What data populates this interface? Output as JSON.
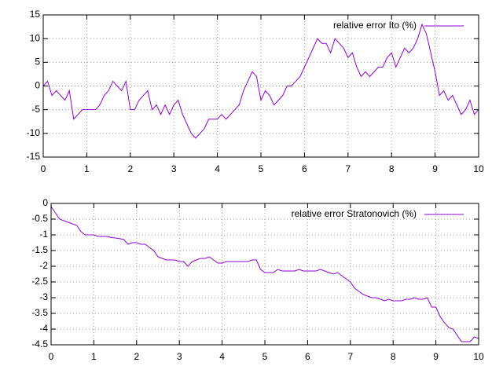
{
  "chart_data": [
    {
      "type": "line",
      "grid": true,
      "legend": "top right",
      "x": [
        0,
        0.1,
        0.2,
        0.3,
        0.4,
        0.5,
        0.6,
        0.7,
        0.8,
        0.9,
        1,
        1.1,
        1.2,
        1.3,
        1.4,
        1.5,
        1.6,
        1.7,
        1.8,
        1.9,
        2,
        2.1,
        2.2,
        2.3,
        2.4,
        2.5,
        2.6,
        2.7,
        2.8,
        2.9,
        3,
        3.1,
        3.2,
        3.3,
        3.4,
        3.5,
        3.6,
        3.7,
        3.8,
        3.9,
        4,
        4.1,
        4.2,
        4.3,
        4.4,
        4.5,
        4.6,
        4.7,
        4.8,
        4.9,
        5,
        5.1,
        5.2,
        5.3,
        5.4,
        5.5,
        5.6,
        5.7,
        5.8,
        5.9,
        6,
        6.1,
        6.2,
        6.3,
        6.4,
        6.5,
        6.6,
        6.7,
        6.8,
        6.9,
        7,
        7.1,
        7.2,
        7.3,
        7.4,
        7.5,
        7.6,
        7.7,
        7.8,
        7.9,
        8,
        8.1,
        8.2,
        8.3,
        8.4,
        8.5,
        8.6,
        8.7,
        8.8,
        8.9,
        9,
        9.1,
        9.2,
        9.3,
        9.4,
        9.5,
        9.6,
        9.7,
        9.8,
        9.9,
        10
      ],
      "series": [
        {
          "name": "relative error Ito (%)",
          "color": "#9400d3",
          "values": [
            0,
            1,
            -2,
            -1,
            -2,
            -3,
            -1,
            -7,
            -6,
            -5,
            -5,
            -5,
            -5,
            -4,
            -2,
            -1,
            1,
            0,
            -1,
            1,
            -5,
            -5,
            -3,
            -2,
            -1,
            -5,
            -4,
            -6,
            -4,
            -6,
            -4,
            -3,
            -6,
            -8,
            -10,
            -11,
            -10,
            -9,
            -7,
            -7,
            -7,
            -6,
            -7,
            -6,
            -5,
            -4,
            -1,
            1,
            3,
            2,
            -3,
            -1,
            -2,
            -4,
            -3,
            -2,
            0,
            0,
            1,
            2,
            4,
            6,
            8,
            10,
            9,
            9,
            7,
            10,
            9,
            8,
            6,
            7,
            4,
            2,
            3,
            2,
            3,
            4,
            4,
            6,
            7,
            4,
            6,
            8,
            7,
            8,
            10,
            13,
            11,
            7,
            3,
            -2,
            -1,
            -3,
            -2,
            -4,
            -6,
            -5,
            -3,
            -6,
            -5
          ]
        }
      ],
      "xlim": [
        0,
        10
      ],
      "xticks": [
        0,
        1,
        2,
        3,
        4,
        5,
        6,
        7,
        8,
        9,
        10
      ],
      "ylim": [
        -15,
        15
      ],
      "yticks": [
        -15,
        -10,
        -5,
        0,
        5,
        10,
        15
      ]
    },
    {
      "type": "line",
      "grid": true,
      "legend": "top right",
      "x": [
        0,
        0.1,
        0.2,
        0.3,
        0.4,
        0.5,
        0.6,
        0.7,
        0.8,
        0.9,
        1,
        1.1,
        1.2,
        1.3,
        1.4,
        1.5,
        1.6,
        1.7,
        1.8,
        1.9,
        2,
        2.1,
        2.2,
        2.3,
        2.4,
        2.5,
        2.6,
        2.7,
        2.8,
        2.9,
        3,
        3.1,
        3.2,
        3.3,
        3.4,
        3.5,
        3.6,
        3.7,
        3.8,
        3.9,
        4,
        4.1,
        4.2,
        4.3,
        4.4,
        4.5,
        4.6,
        4.7,
        4.8,
        4.9,
        5,
        5.1,
        5.2,
        5.3,
        5.4,
        5.5,
        5.6,
        5.7,
        5.8,
        5.9,
        6,
        6.1,
        6.2,
        6.3,
        6.4,
        6.5,
        6.6,
        6.7,
        6.8,
        6.9,
        7,
        7.1,
        7.2,
        7.3,
        7.4,
        7.5,
        7.6,
        7.7,
        7.8,
        7.9,
        8,
        8.1,
        8.2,
        8.3,
        8.4,
        8.5,
        8.6,
        8.7,
        8.8,
        8.9,
        9,
        9.1,
        9.2,
        9.3,
        9.4,
        9.5,
        9.6,
        9.7,
        9.8,
        9.9,
        10
      ],
      "series": [
        {
          "name": "relative error Stratonovich (%)",
          "color": "#9400d3",
          "values": [
            -0.1,
            -0.3,
            -0.5,
            -0.55,
            -0.6,
            -0.65,
            -0.7,
            -0.9,
            -1,
            -1,
            -1,
            -1.05,
            -1.05,
            -1.05,
            -1.08,
            -1.1,
            -1.12,
            -1.15,
            -1.3,
            -1.25,
            -1.25,
            -1.3,
            -1.3,
            -1.4,
            -1.5,
            -1.7,
            -1.75,
            -1.8,
            -1.8,
            -1.8,
            -1.85,
            -1.85,
            -2,
            -1.85,
            -1.8,
            -1.75,
            -1.75,
            -1.7,
            -1.8,
            -1.9,
            -1.9,
            -1.85,
            -1.85,
            -1.85,
            -1.85,
            -1.85,
            -1.85,
            -1.8,
            -1.8,
            -2.1,
            -2.2,
            -2.2,
            -2.2,
            -2.1,
            -2.15,
            -2.15,
            -2.15,
            -2.15,
            -2.1,
            -2.15,
            -2.15,
            -2.15,
            -2.15,
            -2.1,
            -2.15,
            -2.2,
            -2.25,
            -2.2,
            -2.3,
            -2.4,
            -2.5,
            -2.7,
            -2.8,
            -2.9,
            -2.95,
            -3,
            -3,
            -3.05,
            -3.1,
            -3.05,
            -3.1,
            -3.1,
            -3.1,
            -3.05,
            -3.05,
            -3,
            -3.05,
            -3.05,
            -3,
            -3.3,
            -3.3,
            -3.6,
            -3.8,
            -3.95,
            -4,
            -4.2,
            -4.4,
            -4.4,
            -4.4,
            -4.25,
            -4.3
          ]
        }
      ],
      "xlim": [
        0,
        10
      ],
      "xticks": [
        0,
        1,
        2,
        3,
        4,
        5,
        6,
        7,
        8,
        9,
        10
      ],
      "ylim": [
        -4.5,
        0
      ],
      "yticks": [
        -4.5,
        -4,
        -3.5,
        -3,
        -2.5,
        -2,
        -1.5,
        -1,
        -0.5,
        0
      ]
    }
  ]
}
